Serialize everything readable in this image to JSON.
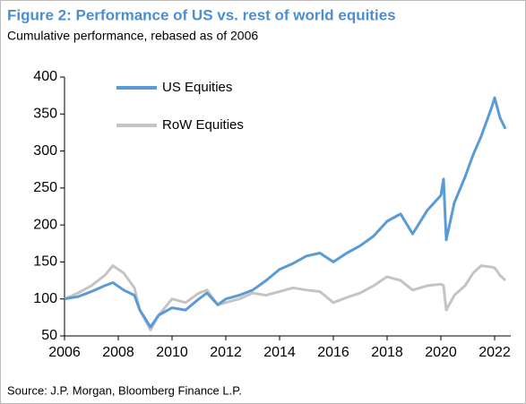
{
  "chart_data": {
    "type": "line",
    "title": "Figure 2: Performance of US vs. rest of world equities",
    "subtitle": "Cumulative performance, rebased as of 2006",
    "source": "Source: J.P. Morgan, Bloomberg Finance L.P.",
    "x": [
      2006,
      2006.5,
      2007,
      2007.5,
      2007.8,
      2008.2,
      2008.6,
      2008.8,
      2009.2,
      2009.5,
      2010,
      2010.5,
      2011,
      2011.3,
      2011.7,
      2012,
      2012.5,
      2013,
      2013.5,
      2014,
      2014.5,
      2015,
      2015.5,
      2016,
      2016.5,
      2017,
      2017.5,
      2018,
      2018.5,
      2018.95,
      2019.5,
      2020,
      2020.1,
      2020.2,
      2020.5,
      2020.9,
      2021.2,
      2021.5,
      2021.9,
      2022,
      2022.2,
      2022.4
    ],
    "series": [
      {
        "name": "US Equities",
        "color": "#5b9bd5",
        "values": [
          100,
          103,
          110,
          118,
          122,
          112,
          105,
          85,
          62,
          78,
          88,
          85,
          100,
          108,
          92,
          100,
          105,
          112,
          125,
          140,
          148,
          158,
          162,
          150,
          162,
          172,
          185,
          205,
          215,
          188,
          220,
          240,
          262,
          180,
          230,
          265,
          295,
          320,
          360,
          372,
          345,
          330
        ]
      },
      {
        "name": "RoW Equities",
        "color": "#c4c4c4",
        "values": [
          100,
          108,
          118,
          132,
          145,
          135,
          115,
          85,
          58,
          78,
          100,
          95,
          108,
          112,
          92,
          95,
          100,
          108,
          105,
          110,
          115,
          112,
          110,
          95,
          102,
          108,
          118,
          130,
          125,
          112,
          118,
          120,
          118,
          85,
          105,
          118,
          135,
          145,
          143,
          142,
          132,
          125
        ]
      }
    ],
    "xlim": [
      2006,
      2022.6
    ],
    "xticks": [
      2006,
      2008,
      2010,
      2012,
      2014,
      2016,
      2018,
      2020,
      2022
    ],
    "ylim": [
      50,
      400
    ],
    "yticks": [
      50,
      100,
      150,
      200,
      250,
      300,
      350,
      400
    ],
    "grid": false
  }
}
